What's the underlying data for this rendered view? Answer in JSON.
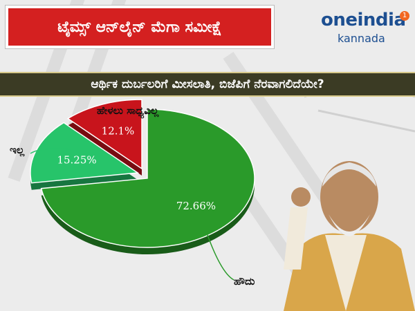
{
  "header": {
    "title": "ಟೈಮ್ಸ್ ಆನ್‌ಲೈನ್ ಮೆಗಾ ಸಮೀಕ್ಷೆ",
    "logo_main": "oneindia",
    "logo_sub": "kannada",
    "logo_badge": "1"
  },
  "question": "ಆರ್ಥಿಕ ದುರ್ಬಲರಿಗೆ ಮೀಸಲಾತಿ, ಬಿಜೆಪಿಗೆ ನೆರವಾಗಲಿದೆಯೇ?",
  "colors": {
    "yes": "#2a9a2a",
    "no": "#27c46a",
    "cant_say": "#c8141c",
    "accent": "#d42020",
    "brand": "#1d4f91"
  },
  "chart_data": {
    "type": "pie",
    "title": "ಆರ್ಥಿಕ ದುರ್ಬಲರಿಗೆ ಮೀಸಲಾತಿ, ಬಿಜೆಪಿಗೆ ನೆರವಾಗಲಿದೆಯೇ?",
    "slices": [
      {
        "label": "ಹೌದು",
        "value": 72.66,
        "display": "72.66%",
        "color": "#2a9a2a"
      },
      {
        "label": "ಇಲ್ಲ",
        "value": 15.25,
        "display": "15.25%",
        "color": "#27c46a"
      },
      {
        "label": "ಹೇಳಲು ಸಾಧ್ಯವಿಲ್ಲ",
        "value": 12.1,
        "display": "12.1%",
        "color": "#c8141c"
      }
    ]
  }
}
